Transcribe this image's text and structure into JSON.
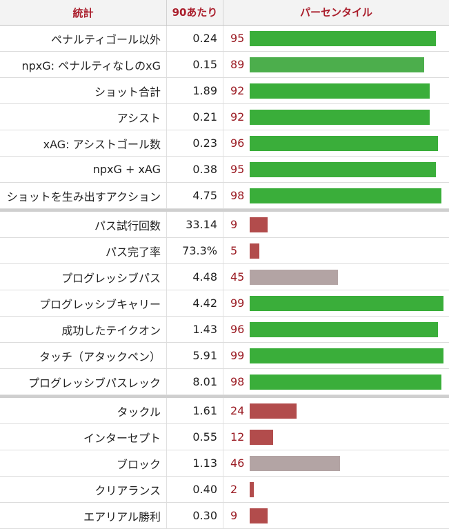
{
  "header": {
    "stat_label": "統計",
    "per90_label": "90あたり",
    "percentile_label": "パーセンタイル"
  },
  "colors": {
    "high": "#3aae3a",
    "high_alt": "#4cae4c",
    "mid": "#b3a4a4",
    "low": "#b24c4c",
    "header_text": "#aa1e2c"
  },
  "groups": [
    [
      {
        "name": "ペナルティゴール以外",
        "per90": "0.24",
        "percentile": "95",
        "pct_value": 95,
        "tier": "high"
      },
      {
        "name": "npxG: ペナルティなしのxG",
        "per90": "0.15",
        "percentile": "89",
        "pct_value": 89,
        "tier": "high_alt"
      },
      {
        "name": "ショット合計",
        "per90": "1.89",
        "percentile": "92",
        "pct_value": 92,
        "tier": "high"
      },
      {
        "name": "アシスト",
        "per90": "0.21",
        "percentile": "92",
        "pct_value": 92,
        "tier": "high"
      },
      {
        "name": "xAG: アシストゴール数",
        "per90": "0.23",
        "percentile": "96",
        "pct_value": 96,
        "tier": "high"
      },
      {
        "name": "npxG + xAG",
        "per90": "0.38",
        "percentile": "95",
        "pct_value": 95,
        "tier": "high"
      },
      {
        "name": "ショットを生み出すアクション",
        "per90": "4.75",
        "percentile": "98",
        "pct_value": 98,
        "tier": "high"
      }
    ],
    [
      {
        "name": "パス試行回数",
        "per90": "33.14",
        "percentile": "9",
        "pct_value": 9,
        "tier": "low"
      },
      {
        "name": "パス完了率",
        "per90": "73.3%",
        "percentile": "5",
        "pct_value": 5,
        "tier": "low"
      },
      {
        "name": "プログレッシブパス",
        "per90": "4.48",
        "percentile": "45",
        "pct_value": 45,
        "tier": "mid"
      },
      {
        "name": "プログレッシブキャリー",
        "per90": "4.42",
        "percentile": "99",
        "pct_value": 99,
        "tier": "high"
      },
      {
        "name": "成功したテイクオン",
        "per90": "1.43",
        "percentile": "96",
        "pct_value": 96,
        "tier": "high"
      },
      {
        "name": "タッチ（アタックペン）",
        "per90": "5.91",
        "percentile": "99",
        "pct_value": 99,
        "tier": "high"
      },
      {
        "name": "プログレッシブパスレック",
        "per90": "8.01",
        "percentile": "98",
        "pct_value": 98,
        "tier": "high"
      }
    ],
    [
      {
        "name": "タックル",
        "per90": "1.61",
        "percentile": "24",
        "pct_value": 24,
        "tier": "low"
      },
      {
        "name": "インターセプト",
        "per90": "0.55",
        "percentile": "12",
        "pct_value": 12,
        "tier": "low"
      },
      {
        "name": "ブロック",
        "per90": "1.13",
        "percentile": "46",
        "pct_value": 46,
        "tier": "mid"
      },
      {
        "name": "クリアランス",
        "per90": "0.40",
        "percentile": "2",
        "pct_value": 2,
        "tier": "low"
      },
      {
        "name": "エアリアル勝利",
        "per90": "0.30",
        "percentile": "9",
        "pct_value": 9,
        "tier": "low"
      }
    ]
  ]
}
